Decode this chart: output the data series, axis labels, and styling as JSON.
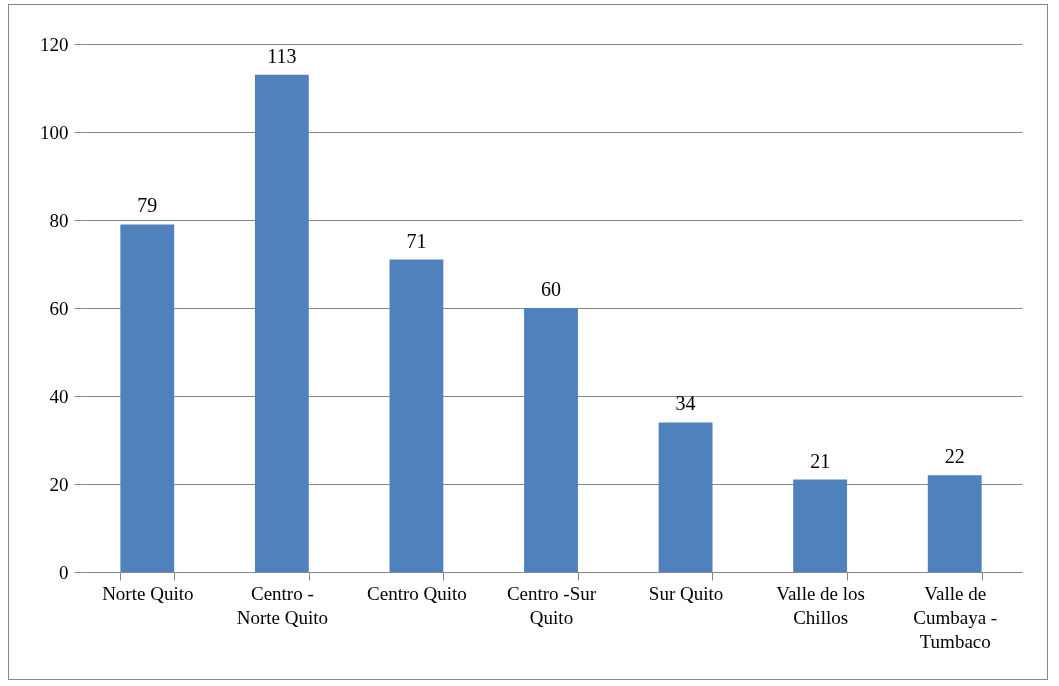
{
  "chart_data": {
    "type": "bar",
    "categories": [
      "Norte Quito",
      "Centro - Norte Quito",
      "Centro Quito",
      "Centro -Sur Quito",
      "Sur Quito",
      "Valle de los Chillos",
      "Valle de Cumbaya - Tumbaco"
    ],
    "values": [
      79,
      113,
      71,
      60,
      34,
      21,
      22
    ],
    "color": "#4f81bd",
    "ylim": [
      0,
      120
    ],
    "yticks": [
      0,
      20,
      40,
      60,
      80,
      100,
      120
    ],
    "grid": "y",
    "data_labels": true
  }
}
